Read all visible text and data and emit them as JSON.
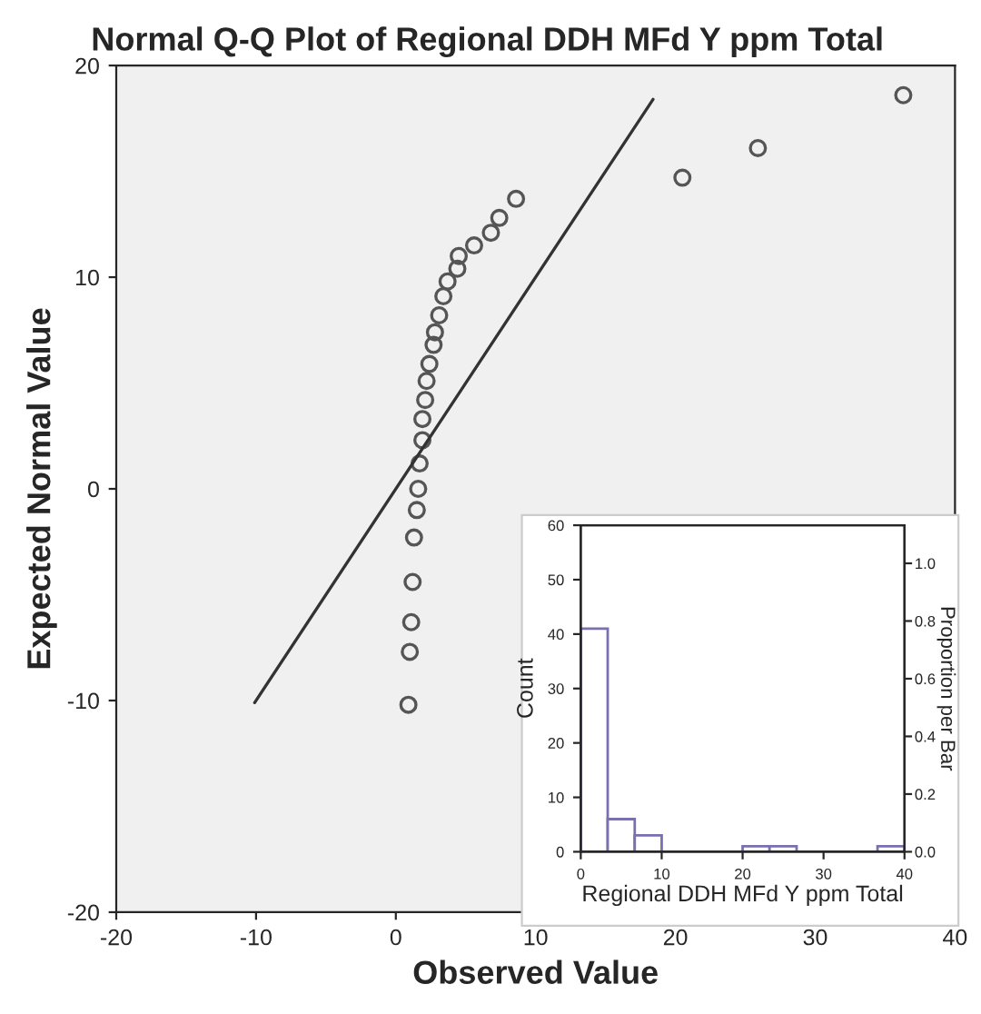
{
  "chart_data": [
    {
      "type": "scatter",
      "title": "Normal Q-Q Plot of Regional DDH MFd Y ppm Total",
      "xlabel": "Observed Value",
      "ylabel": "Expected Normal Value",
      "xlim": [
        -20,
        40
      ],
      "xticks": [
        -20,
        -10,
        0,
        10,
        20,
        30,
        40
      ],
      "ylim": [
        -20,
        20
      ],
      "yticks": [
        -20,
        -10,
        0,
        10,
        20
      ],
      "grid": false,
      "legend": false,
      "series": [
        {
          "type": "scatter",
          "marker": "circle",
          "color": "#555555",
          "x": [
            36.3,
            25.9,
            20.5,
            8.6,
            7.4,
            6.8,
            5.6,
            4.5,
            4.4,
            3.7,
            3.4,
            3.1,
            2.8,
            2.7,
            2.4,
            2.2,
            2.1,
            1.9,
            1.9,
            1.7,
            1.6,
            1.5,
            1.3,
            1.2,
            1.1,
            1.0,
            0.9
          ],
          "values": [
            18.6,
            16.1,
            14.7,
            13.7,
            12.8,
            12.1,
            11.5,
            11.0,
            10.4,
            9.8,
            9.1,
            8.2,
            7.4,
            6.8,
            5.9,
            5.1,
            4.2,
            3.3,
            2.3,
            1.2,
            0.0,
            -1.0,
            -2.3,
            -4.4,
            -6.3,
            -7.7,
            -10.2
          ]
        },
        {
          "type": "line",
          "color": "#333333",
          "x": [
            -10.1,
            18.4
          ],
          "values": [
            -10.1,
            18.4
          ]
        }
      ]
    },
    {
      "type": "histogram",
      "xlabel": "Regional DDH MFd Y ppm Total",
      "ylabel": "Count",
      "y2label": "Proportion per Bar",
      "color": "#7b6fb0",
      "bins": [
        0,
        3.33,
        6.67,
        10,
        13.33,
        16.67,
        20,
        23.33,
        26.67,
        30,
        33.33,
        36.67,
        40
      ],
      "values": [
        41,
        6,
        3,
        0,
        0,
        0,
        1,
        1,
        0,
        0,
        0,
        1
      ],
      "xlim": [
        0,
        40
      ],
      "xticks": [
        0,
        10,
        20,
        30,
        40
      ],
      "ylim": [
        0,
        60
      ],
      "yticks": [
        0,
        10,
        20,
        30,
        40,
        50,
        60
      ],
      "y2lim": [
        0,
        1.132
      ],
      "y2ticks": [
        {
          "value": 0,
          "label": "0.0"
        },
        0.2,
        0.4,
        0.6,
        0.8,
        {
          "value": 1,
          "label": "1.0"
        }
      ],
      "grid": false
    }
  ]
}
